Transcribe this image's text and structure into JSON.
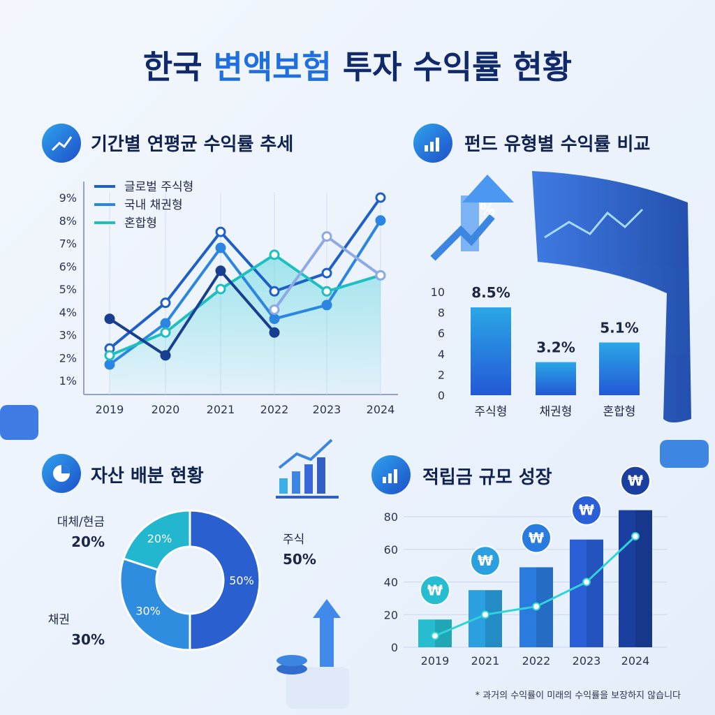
{
  "title": {
    "part1": "한국 ",
    "highlight": "변액보험",
    "part2": " 투자 수익률 현황"
  },
  "colors": {
    "title": "#10296b",
    "highlight": "#1f6fe0",
    "navy": "#173e8f",
    "blue": "#2a7be0",
    "teal": "#1fbfc0"
  },
  "chart_data": [
    {
      "type": "line",
      "title": "기간별 연평균 수익률 추세",
      "icon": "line-chart-icon",
      "categories": [
        "2019",
        "2020",
        "2021",
        "2022",
        "2023",
        "2024"
      ],
      "yticks": [
        "1%",
        "2%",
        "3%",
        "4%",
        "5%",
        "6%",
        "7%",
        "8%",
        "9%"
      ],
      "ylim": [
        1,
        9
      ],
      "legend_placement": "top-left",
      "series": [
        {
          "name": "글로벌 주식형",
          "color": "#1f5fc8",
          "values": [
            2.4,
            4.4,
            7.5,
            4.9,
            5.7,
            9.0
          ]
        },
        {
          "name": "국내 채권형",
          "color": "#2a86e0",
          "values": [
            1.7,
            3.5,
            6.8,
            3.7,
            4.3,
            8.0
          ]
        },
        {
          "name": "혼합형",
          "color": "#1fbfc0",
          "values": [
            2.1,
            3.1,
            5.0,
            6.5,
            4.9,
            5.6
          ]
        },
        {
          "color": "#173e8f",
          "values": [
            3.7,
            2.1,
            5.8,
            3.1,
            null,
            null
          ]
        },
        {
          "color": "#8fa8e6",
          "values": [
            null,
            null,
            null,
            4.1,
            7.3,
            5.6
          ]
        }
      ]
    },
    {
      "type": "bar",
      "title": "펀드 유형별 수익률 비교",
      "icon": "bar-growth-icon",
      "categories": [
        "주식형",
        "채권형",
        "혼합형"
      ],
      "values": [
        8.5,
        3.2,
        5.1
      ],
      "data_labels": [
        "8.5%",
        "3.2%",
        "5.1%"
      ],
      "yticks": [
        "0",
        "2",
        "4",
        "6",
        "8",
        "10"
      ],
      "ylim": [
        0,
        10
      ]
    },
    {
      "type": "pie",
      "title": "자산 배분 현황",
      "icon": "pie-chart-icon",
      "slices": [
        {
          "label": "주식",
          "value": 50,
          "text": "50%",
          "color": "#2a5fd0"
        },
        {
          "label": "채권",
          "value": 30,
          "text": "30%",
          "color": "#2f8de0"
        },
        {
          "label": "대체/현금",
          "value": 20,
          "text": "20%",
          "color": "#22b6cf"
        }
      ]
    },
    {
      "type": "bar",
      "title": "적립금 규모 성장",
      "icon": "bar-growth-icon",
      "categories": [
        "2019",
        "2021",
        "2022",
        "2023",
        "2024"
      ],
      "values": [
        17,
        35,
        49,
        66,
        84
      ],
      "line_values": [
        7,
        20,
        25,
        40,
        68
      ],
      "marker_symbol": "₩",
      "yticks": [
        "0",
        "20",
        "40",
        "60",
        "80"
      ],
      "ylim": [
        0,
        80
      ]
    }
  ],
  "footnote": "* 과거의 수익률이 미래의 수익률을 보장하지 않습니다"
}
